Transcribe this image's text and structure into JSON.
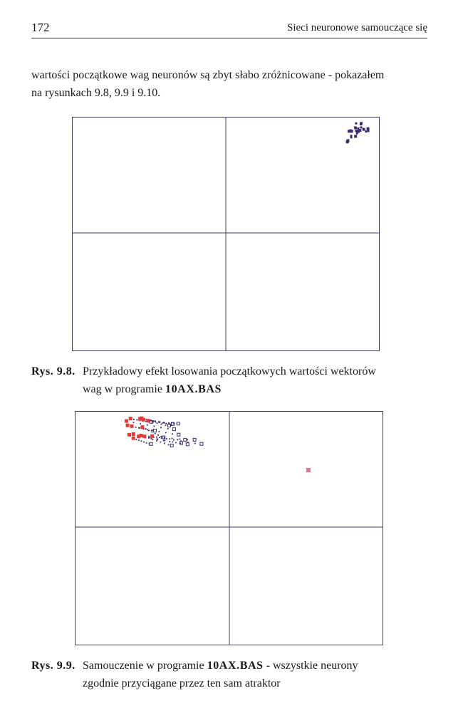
{
  "header": {
    "page_number": "172",
    "running_title": "Sieci neuronowe samouczące się"
  },
  "body": {
    "line1": "wartości początkowe wag neuronów są zbyt słabo zróżnicowane - pokazałem",
    "line2": "na rysunkach 9.8, 9.9 i 9.10."
  },
  "figure_1": {
    "caption_label": "Rys. 9.8.",
    "caption_line1": "Przykładowy efekt losowania początkowych wartości wektorów",
    "caption_line2_prefix": "wag w programie ",
    "caption_program": "10AX.BAS",
    "colors": {
      "frame": "#4a3a6a",
      "points": "#3b2a6b"
    }
  },
  "figure_2": {
    "caption_label": "Rys. 9.9.",
    "caption_line1_prefix": "Samouczenie w programie ",
    "caption_program": "10AX.BAS",
    "caption_line1_suffix": " - wszystkie neurony",
    "caption_line2": "zgodnie przyciągane przez ten sam atraktor",
    "colors": {
      "frame": "#4a3a6a",
      "trail": "#3b2a6b",
      "start": "#e53935",
      "attractor": "#e07a8a"
    }
  }
}
